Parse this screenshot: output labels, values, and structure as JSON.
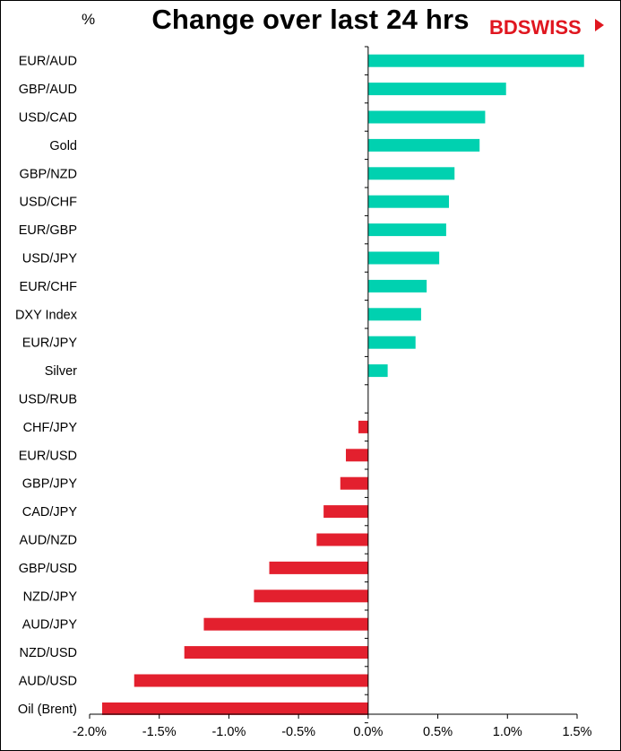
{
  "chart_data": {
    "type": "bar",
    "orientation": "horizontal",
    "title": "Change over last 24 hrs",
    "unit_label": "%",
    "brand": "BDSWISS",
    "categories": [
      "EUR/AUD",
      "GBP/AUD",
      "USD/CAD",
      "Gold",
      "GBP/NZD",
      "USD/CHF",
      "EUR/GBP",
      "USD/JPY",
      "EUR/CHF",
      "DXY Index",
      "EUR/JPY",
      "Silver",
      "USD/RUB",
      "CHF/JPY",
      "EUR/USD",
      "GBP/JPY",
      "CAD/JPY",
      "AUD/NZD",
      "GBP/USD",
      "NZD/JPY",
      "AUD/JPY",
      "NZD/USD",
      "AUD/USD",
      "Oil (Brent)"
    ],
    "values": [
      1.55,
      0.99,
      0.84,
      0.8,
      0.62,
      0.58,
      0.56,
      0.51,
      0.42,
      0.38,
      0.34,
      0.14,
      0.0,
      -0.07,
      -0.16,
      -0.2,
      -0.32,
      -0.37,
      -0.71,
      -0.82,
      -1.18,
      -1.32,
      -1.68,
      -1.91
    ],
    "xlim": [
      -2.0,
      1.5
    ],
    "xticks": [
      "-2.0%",
      "-1.5%",
      "-1.0%",
      "-0.5%",
      "0.0%",
      "0.5%",
      "1.0%",
      "1.5%"
    ],
    "positive_color": "#00d1b0",
    "negative_color": "#e3202e",
    "grid": false
  }
}
